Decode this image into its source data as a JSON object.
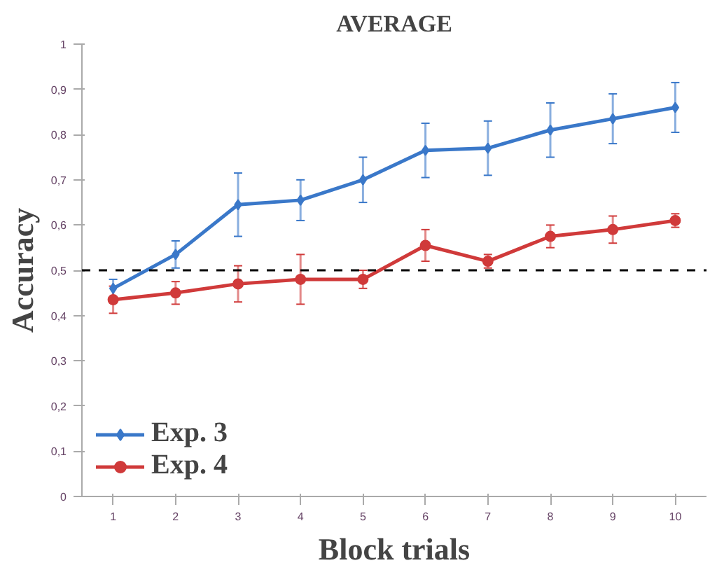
{
  "chart_data": {
    "type": "line",
    "title": "AVERAGE",
    "xlabel": "Block trials",
    "ylabel": "Accuracy",
    "categories": [
      "1",
      "2",
      "3",
      "4",
      "5",
      "6",
      "7",
      "8",
      "9",
      "10"
    ],
    "series": [
      {
        "name": "Exp. 3",
        "color": "#3a78c9",
        "marker": "diamond",
        "values": [
          0.46,
          0.535,
          0.645,
          0.655,
          0.7,
          0.765,
          0.77,
          0.81,
          0.835,
          0.86
        ],
        "errors": [
          0.02,
          0.03,
          0.07,
          0.045,
          0.05,
          0.06,
          0.06,
          0.06,
          0.055,
          0.055
        ]
      },
      {
        "name": "Exp. 4",
        "color": "#d03a3a",
        "marker": "circle",
        "values": [
          0.435,
          0.45,
          0.47,
          0.48,
          0.48,
          0.555,
          0.52,
          0.575,
          0.59,
          0.61
        ],
        "errors": [
          0.03,
          0.025,
          0.04,
          0.055,
          0.02,
          0.035,
          0.015,
          0.025,
          0.03,
          0.015
        ]
      }
    ],
    "ylim": [
      0,
      1
    ],
    "yticks": [
      0,
      {
        "value": 0.1,
        "label": "0,1"
      },
      {
        "value": 0.2,
        "label": "0,2"
      },
      {
        "value": 0.3,
        "label": "0,3"
      },
      {
        "value": 0.4,
        "label": "0,4"
      },
      {
        "value": 0.5,
        "label": "0,5"
      },
      {
        "value": 0.6,
        "label": "0,6"
      },
      {
        "value": 0.7,
        "label": "0,7"
      },
      {
        "value": 0.8,
        "label": "0,8"
      },
      {
        "value": 0.9,
        "label": "0,9"
      },
      1
    ],
    "ref_lines": [
      {
        "axis": "y",
        "value": 0.5,
        "color": "#000000",
        "line_style": "dashed"
      }
    ],
    "legend": "bottom left",
    "grid": false,
    "line_style": "solid"
  }
}
